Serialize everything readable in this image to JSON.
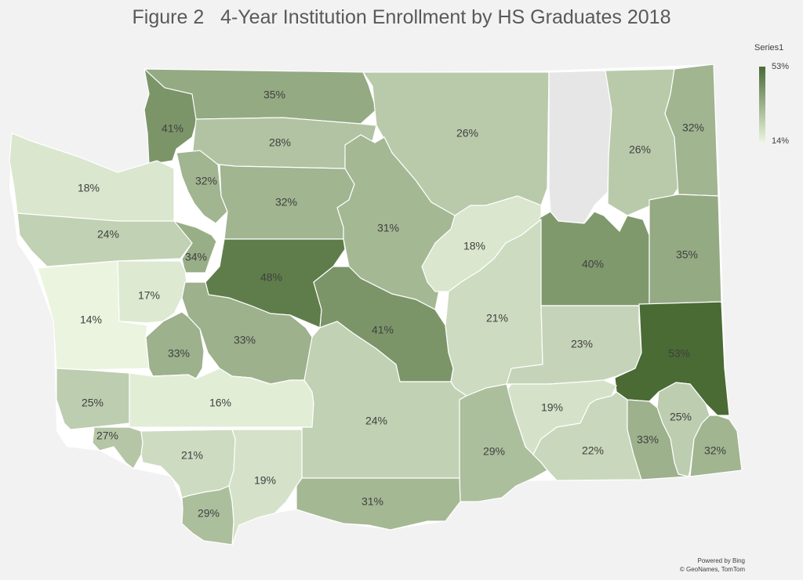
{
  "title": "Figure 2   4-Year Institution Enrollment by HS Graduates 2018",
  "legend": {
    "title": "Series1",
    "max_label": "53%",
    "min_label": "14%",
    "max_color": "#4a6b34",
    "min_color": "#eaf4df"
  },
  "colors": {
    "no_data": "#e6e6e6",
    "background": "#f2f2f2",
    "border": "#ffffff"
  },
  "credit": {
    "line1": "Powered by Bing",
    "line2": "© GeoNames, TomTom"
  },
  "chart_data": {
    "type": "choropleth",
    "min": 14,
    "max": 53,
    "regions": [
      {
        "label": "41%",
        "value": 41
      },
      {
        "label": "35%",
        "value": 35
      },
      {
        "label": "26%",
        "value": 26
      },
      {
        "label": "",
        "value": null
      },
      {
        "label": "26%",
        "value": 26
      },
      {
        "label": "32%",
        "value": 32
      },
      {
        "label": "28%",
        "value": 28
      },
      {
        "label": "18%",
        "value": 18
      },
      {
        "label": "32%",
        "value": 32
      },
      {
        "label": "32%",
        "value": 32
      },
      {
        "label": "31%",
        "value": 31
      },
      {
        "label": "24%",
        "value": 24
      },
      {
        "label": "18%",
        "value": 18
      },
      {
        "label": "40%",
        "value": 40
      },
      {
        "label": "35%",
        "value": 35
      },
      {
        "label": "34%",
        "value": 34
      },
      {
        "label": "48%",
        "value": 48
      },
      {
        "label": "17%",
        "value": 17
      },
      {
        "label": "14%",
        "value": 14
      },
      {
        "label": "41%",
        "value": 41
      },
      {
        "label": "21%",
        "value": 21
      },
      {
        "label": "33%",
        "value": 33
      },
      {
        "label": "33%",
        "value": 33
      },
      {
        "label": "23%",
        "value": 23
      },
      {
        "label": "53%",
        "value": 53
      },
      {
        "label": "25%",
        "value": 25
      },
      {
        "label": "16%",
        "value": 16
      },
      {
        "label": "19%",
        "value": 19
      },
      {
        "label": "24%",
        "value": 24
      },
      {
        "label": "27%",
        "value": 27
      },
      {
        "label": "25%",
        "value": 25
      },
      {
        "label": "29%",
        "value": 29
      },
      {
        "label": "22%",
        "value": 22
      },
      {
        "label": "33%",
        "value": 33
      },
      {
        "label": "32%",
        "value": 32
      },
      {
        "label": "21%",
        "value": 21
      },
      {
        "label": "19%",
        "value": 19
      },
      {
        "label": "31%",
        "value": 31
      },
      {
        "label": "29%",
        "value": 29
      }
    ]
  }
}
